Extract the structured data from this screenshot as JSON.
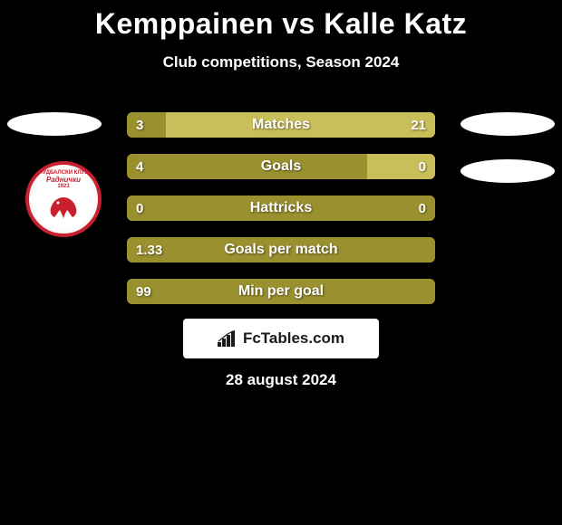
{
  "title": "Kemppainen vs Kalle Katz",
  "subtitle": "Club competitions, Season 2024",
  "date": "28 august 2024",
  "brand": "FcTables.com",
  "club_logo": {
    "line1": "ФУДБАЛСКИ КЛУБ",
    "line2": "Раднички",
    "line3": "1923",
    "border_color": "#c8202f"
  },
  "bars": {
    "bar_color_left": "#9a9030",
    "bar_color_right": "#c8be5a",
    "rows": [
      {
        "label": "Matches",
        "left": "3",
        "right": "21",
        "left_pct": 12.5,
        "right_pct": 87.5
      },
      {
        "label": "Goals",
        "left": "4",
        "right": "0",
        "left_pct": 78,
        "right_pct": 22
      },
      {
        "label": "Hattricks",
        "left": "0",
        "right": "0",
        "left_pct": 100,
        "right_pct": 0
      },
      {
        "label": "Goals per match",
        "left": "1.33",
        "right": "",
        "left_pct": 100,
        "right_pct": 0
      },
      {
        "label": "Min per goal",
        "left": "99",
        "right": "",
        "left_pct": 100,
        "right_pct": 0
      }
    ]
  },
  "colors": {
    "background": "#000000",
    "text": "#ffffff"
  }
}
